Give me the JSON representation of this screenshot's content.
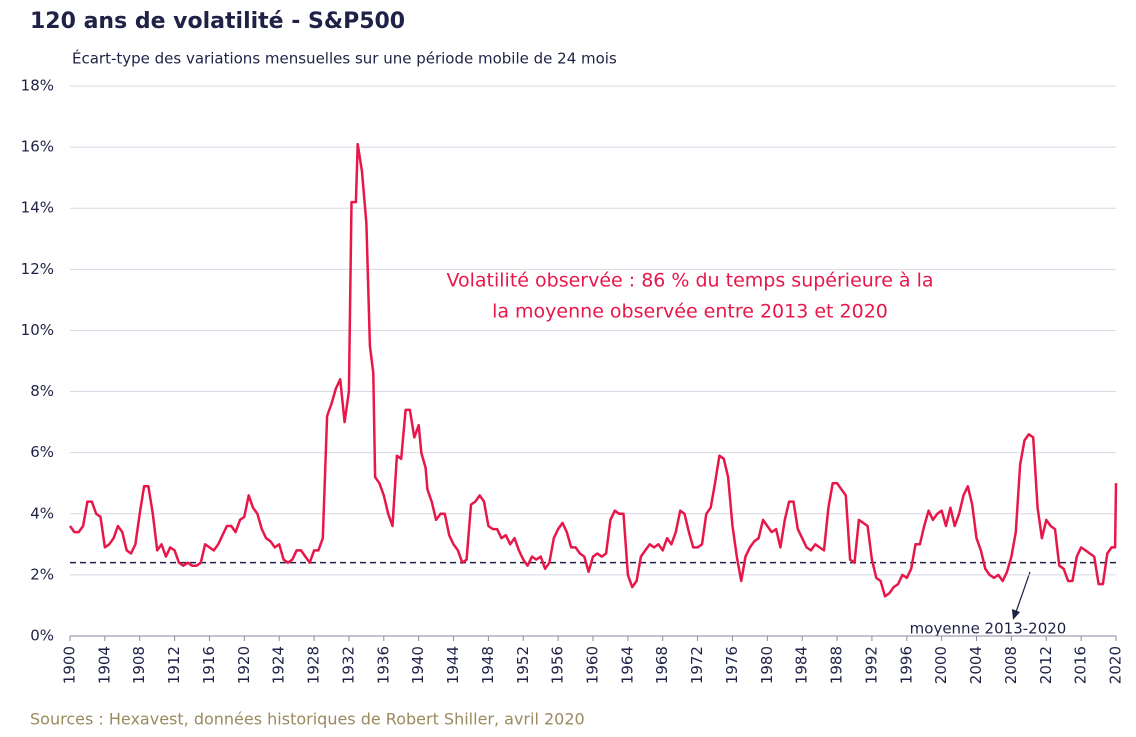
{
  "chart_data": {
    "type": "line",
    "title": "120 ans de volatilité - S&P500",
    "subtitle": "Écart-type des variations mensuelles sur une période mobile de 24 mois",
    "source": "Sources : Hexavest, données historiques de Robert Shiller, avril 2020",
    "annotation_lines": [
      "Volatilité observée : 86 % du temps supérieure à la",
      "la moyenne observée entre 2013 et 2020"
    ],
    "average_line": {
      "value": 2.4,
      "label": "moyenne 2013-2020"
    },
    "xlim": [
      1900,
      2020
    ],
    "xticks": [
      1900,
      1904,
      1908,
      1912,
      1916,
      1920,
      1924,
      1928,
      1932,
      1936,
      1940,
      1944,
      1948,
      1952,
      1956,
      1960,
      1964,
      1968,
      1972,
      1976,
      1980,
      1984,
      1988,
      1992,
      1996,
      2000,
      2004,
      2008,
      2012,
      2016,
      2020
    ],
    "ylim": [
      0,
      18
    ],
    "yticks": [
      {
        "value": 0,
        "label": "0%"
      },
      {
        "value": 2,
        "label": "2%"
      },
      {
        "value": 4,
        "label": "4%"
      },
      {
        "value": 6,
        "label": "6%"
      },
      {
        "value": 8,
        "label": "8%"
      },
      {
        "value": 10,
        "label": "10%"
      },
      {
        "value": 12,
        "label": "12%"
      },
      {
        "value": 14,
        "label": "14%"
      },
      {
        "value": 16,
        "label": "16%"
      },
      {
        "value": 18,
        "label": "18%"
      }
    ],
    "grid": true,
    "series": [
      {
        "color": "#e8174a",
        "x": [
          1900,
          1900.5,
          1901,
          1901.5,
          1902,
          1902.5,
          1903,
          1903.5,
          1904,
          1904.5,
          1905,
          1905.5,
          1906,
          1906.5,
          1907,
          1907.5,
          1908,
          1908.5,
          1909,
          1909.5,
          1910,
          1910.5,
          1911,
          1911.5,
          1912,
          1912.5,
          1913,
          1913.5,
          1914,
          1914.5,
          1915,
          1915.5,
          1916,
          1916.5,
          1917,
          1917.5,
          1918,
          1918.5,
          1919,
          1919.5,
          1920,
          1920.5,
          1921,
          1921.5,
          1922,
          1922.5,
          1923,
          1923.5,
          1924,
          1924.5,
          1925,
          1925.5,
          1926,
          1926.5,
          1927,
          1927.5,
          1928,
          1928.5,
          1929,
          1929.5,
          1930,
          1930.5,
          1931,
          1931.5,
          1932,
          1932.3,
          1932.8,
          1933,
          1933.5,
          1934,
          1934.4,
          1934.8,
          1935,
          1935.5,
          1936,
          1936.5,
          1937,
          1937.5,
          1938,
          1938.5,
          1939,
          1939.5,
          1940,
          1940.3,
          1940.8,
          1941,
          1941.5,
          1942,
          1942.5,
          1943,
          1943.5,
          1944,
          1944.5,
          1945,
          1945.5,
          1946,
          1946.5,
          1947,
          1947.5,
          1948,
          1948.5,
          1949,
          1949.5,
          1950,
          1950.5,
          1951,
          1951.5,
          1952,
          1952.5,
          1953,
          1953.5,
          1954,
          1954.5,
          1955,
          1955.5,
          1956,
          1956.5,
          1957,
          1957.5,
          1958,
          1958.5,
          1959,
          1959.5,
          1960,
          1960.5,
          1961,
          1961.5,
          1962,
          1962.5,
          1963,
          1963.5,
          1964,
          1964.5,
          1965,
          1965.5,
          1966,
          1966.5,
          1967,
          1967.5,
          1968,
          1968.5,
          1969,
          1969.5,
          1970,
          1970.5,
          1971,
          1971.5,
          1972,
          1972.5,
          1973,
          1973.5,
          1974,
          1974.5,
          1975,
          1975.5,
          1976,
          1976.5,
          1977,
          1977.5,
          1978,
          1978.5,
          1979,
          1979.5,
          1980,
          1980.5,
          1981,
          1981.5,
          1982,
          1982.5,
          1983,
          1983.5,
          1984,
          1984.5,
          1985,
          1985.5,
          1986,
          1986.5,
          1987,
          1987.5,
          1988,
          1988.5,
          1989,
          1989.5,
          1990,
          1990.5,
          1991,
          1991.5,
          1992,
          1992.5,
          1993,
          1993.5,
          1994,
          1994.5,
          1995,
          1995.5,
          1996,
          1996.5,
          1997,
          1997.5,
          1998,
          1998.5,
          1999,
          1999.5,
          2000,
          2000.5,
          2001,
          2001.5,
          2002,
          2002.5,
          2003,
          2003.5,
          2004,
          2004.5,
          2005,
          2005.5,
          2006,
          2006.5,
          2007,
          2007.5,
          2008,
          2008.5,
          2009,
          2009.5,
          2010,
          2010.5,
          2011,
          2011.5,
          2012,
          2012.5,
          2013,
          2013.5,
          2014,
          2014.5,
          2015,
          2015.5,
          2016,
          2016.5,
          2017,
          2017.5,
          2018,
          2018.5,
          2019,
          2019.5,
          2019.9,
          2020
        ],
        "values": [
          3.6,
          3.4,
          3.4,
          3.6,
          4.4,
          4.4,
          4.0,
          3.9,
          2.9,
          3.0,
          3.2,
          3.6,
          3.4,
          2.8,
          2.7,
          3.0,
          4.0,
          4.9,
          4.9,
          4.0,
          2.8,
          3.0,
          2.6,
          2.9,
          2.8,
          2.4,
          2.3,
          2.4,
          2.3,
          2.3,
          2.4,
          3.0,
          2.9,
          2.8,
          3.0,
          3.3,
          3.6,
          3.6,
          3.4,
          3.8,
          3.9,
          4.6,
          4.2,
          4.0,
          3.5,
          3.2,
          3.1,
          2.9,
          3.0,
          2.5,
          2.4,
          2.5,
          2.8,
          2.8,
          2.6,
          2.4,
          2.8,
          2.8,
          3.2,
          7.2,
          7.6,
          8.1,
          8.4,
          7.0,
          8.0,
          14.2,
          14.2,
          16.1,
          15.2,
          13.5,
          9.5,
          8.6,
          5.2,
          5.0,
          4.6,
          4.0,
          3.6,
          5.9,
          5.8,
          7.4,
          7.4,
          6.5,
          6.9,
          6.0,
          5.5,
          4.8,
          4.4,
          3.8,
          4.0,
          4.0,
          3.3,
          3.0,
          2.8,
          2.4,
          2.5,
          4.3,
          4.4,
          4.6,
          4.4,
          3.6,
          3.5,
          3.5,
          3.2,
          3.3,
          3.0,
          3.2,
          2.8,
          2.5,
          2.3,
          2.6,
          2.5,
          2.6,
          2.2,
          2.4,
          3.2,
          3.5,
          3.7,
          3.4,
          2.9,
          2.9,
          2.7,
          2.6,
          2.1,
          2.6,
          2.7,
          2.6,
          2.7,
          3.8,
          4.1,
          4.0,
          4.0,
          2.0,
          1.6,
          1.8,
          2.6,
          2.8,
          3.0,
          2.9,
          3.0,
          2.8,
          3.2,
          3.0,
          3.4,
          4.1,
          4.0,
          3.4,
          2.9,
          2.9,
          3.0,
          4.0,
          4.2,
          5.0,
          5.9,
          5.8,
          5.2,
          3.6,
          2.6,
          1.8,
          2.6,
          2.9,
          3.1,
          3.2,
          3.8,
          3.6,
          3.4,
          3.5,
          2.9,
          3.8,
          4.4,
          4.4,
          3.5,
          3.2,
          2.9,
          2.8,
          3.0,
          2.9,
          2.8,
          4.2,
          5.0,
          5.0,
          4.8,
          4.6,
          2.5,
          2.4,
          3.8,
          3.7,
          3.6,
          2.5,
          1.9,
          1.8,
          1.3,
          1.4,
          1.6,
          1.7,
          2.0,
          1.9,
          2.2,
          3.0,
          3.0,
          3.6,
          4.1,
          3.8,
          4.0,
          4.1,
          3.6,
          4.2,
          3.6,
          4.0,
          4.6,
          4.9,
          4.3,
          3.2,
          2.8,
          2.2,
          2.0,
          1.9,
          2.0,
          1.8,
          2.1,
          2.6,
          3.4,
          5.6,
          6.4,
          6.6,
          6.5,
          4.2,
          3.2,
          3.8,
          3.6,
          3.5,
          2.3,
          2.2,
          1.8,
          1.8,
          2.6,
          2.9,
          2.8,
          2.7,
          2.6,
          1.7,
          1.7,
          2.7,
          2.9,
          2.9,
          5.0
        ]
      }
    ]
  }
}
